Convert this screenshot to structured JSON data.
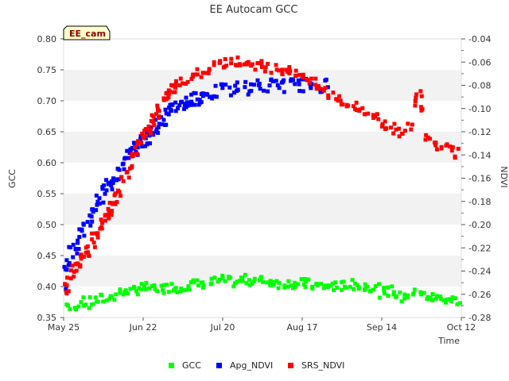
{
  "chart_data": {
    "type": "scatter",
    "title": "EE Autocam GCC",
    "badge": "EE_cam",
    "xlabel": "Time",
    "ylabel": "GCC",
    "y2label": "NDVI",
    "x_ticks": [
      "May 25",
      "Jun 22",
      "Jul 20",
      "Aug 17",
      "Sep 14",
      "Oct 12"
    ],
    "x_tick_days": [
      0,
      28,
      56,
      84,
      112,
      140
    ],
    "xlim_days": [
      0,
      140
    ],
    "ylim": [
      0.35,
      0.8
    ],
    "y_ticks": [
      "0.35",
      "0.40",
      "0.45",
      "0.50",
      "0.55",
      "0.60",
      "0.65",
      "0.70",
      "0.75",
      "0.80"
    ],
    "y2lim": [
      -0.28,
      -0.04
    ],
    "y2_ticks": [
      "-0.04",
      "-0.06",
      "-0.08",
      "-0.10",
      "-0.12",
      "-0.14",
      "-0.16",
      "-0.18",
      "-0.20",
      "-0.22",
      "-0.24",
      "-0.26",
      "-0.28"
    ],
    "grid": "alternating horizontal bands",
    "legend_position": "bottom",
    "series": [
      {
        "name": "GCC",
        "axis": "left",
        "color": "#00ff00",
        "points": [
          [
            0,
            0.37
          ],
          [
            2,
            0.365
          ],
          [
            4,
            0.37
          ],
          [
            6,
            0.375
          ],
          [
            8,
            0.37
          ],
          [
            10,
            0.375
          ],
          [
            12,
            0.378
          ],
          [
            14,
            0.38
          ],
          [
            16,
            0.382
          ],
          [
            18,
            0.385
          ],
          [
            20,
            0.39
          ],
          [
            22,
            0.395
          ],
          [
            24,
            0.392
          ],
          [
            26,
            0.395
          ],
          [
            28,
            0.397
          ],
          [
            30,
            0.398
          ],
          [
            32,
            0.396
          ],
          [
            34,
            0.398
          ],
          [
            36,
            0.397
          ],
          [
            38,
            0.399
          ],
          [
            40,
            0.398
          ],
          [
            42,
            0.4
          ],
          [
            44,
            0.402
          ],
          [
            46,
            0.403
          ],
          [
            48,
            0.404
          ],
          [
            50,
            0.405
          ],
          [
            52,
            0.406
          ],
          [
            54,
            0.408
          ],
          [
            56,
            0.41
          ],
          [
            58,
            0.408
          ],
          [
            60,
            0.407
          ],
          [
            62,
            0.41
          ],
          [
            64,
            0.411
          ],
          [
            66,
            0.41
          ],
          [
            68,
            0.41
          ],
          [
            70,
            0.409
          ],
          [
            72,
            0.408
          ],
          [
            74,
            0.407
          ],
          [
            76,
            0.405
          ],
          [
            78,
            0.406
          ],
          [
            80,
            0.405
          ],
          [
            82,
            0.404
          ],
          [
            84,
            0.405
          ],
          [
            86,
            0.404
          ],
          [
            88,
            0.402
          ],
          [
            90,
            0.401
          ],
          [
            92,
            0.4
          ],
          [
            94,
            0.401
          ],
          [
            96,
            0.4
          ],
          [
            98,
            0.401
          ],
          [
            100,
            0.402
          ],
          [
            102,
            0.403
          ],
          [
            104,
            0.402
          ],
          [
            106,
            0.401
          ],
          [
            108,
            0.4
          ],
          [
            110,
            0.398
          ],
          [
            112,
            0.39
          ],
          [
            114,
            0.392
          ],
          [
            116,
            0.393
          ],
          [
            118,
            0.387
          ],
          [
            120,
            0.38
          ],
          [
            122,
            0.388
          ],
          [
            124,
            0.39
          ],
          [
            126,
            0.387
          ],
          [
            128,
            0.384
          ],
          [
            130,
            0.382
          ],
          [
            132,
            0.381
          ],
          [
            134,
            0.381
          ],
          [
            136,
            0.379
          ],
          [
            138,
            0.378
          ],
          [
            140,
            0.375
          ]
        ]
      },
      {
        "name": "Apg_NDVI",
        "axis": "right",
        "color": "#0000ff",
        "points": [
          [
            0,
            -0.255
          ],
          [
            1,
            -0.24
          ],
          [
            2,
            -0.23
          ],
          [
            3,
            -0.225
          ],
          [
            4,
            -0.22
          ],
          [
            5,
            -0.215
          ],
          [
            6,
            -0.21
          ],
          [
            7,
            -0.205
          ],
          [
            8,
            -0.2
          ],
          [
            9,
            -0.195
          ],
          [
            10,
            -0.19
          ],
          [
            11,
            -0.185
          ],
          [
            12,
            -0.18
          ],
          [
            13,
            -0.175
          ],
          [
            14,
            -0.17
          ],
          [
            15,
            -0.168
          ],
          [
            16,
            -0.165
          ],
          [
            17,
            -0.162
          ],
          [
            18,
            -0.16
          ],
          [
            19,
            -0.157
          ],
          [
            20,
            -0.153
          ],
          [
            21,
            -0.148
          ],
          [
            22,
            -0.143
          ],
          [
            23,
            -0.14
          ],
          [
            24,
            -0.137
          ],
          [
            25,
            -0.134
          ],
          [
            26,
            -0.132
          ],
          [
            27,
            -0.13
          ],
          [
            28,
            -0.128
          ],
          [
            29,
            -0.126
          ],
          [
            30,
            -0.124
          ],
          [
            31,
            -0.121
          ],
          [
            32,
            -0.118
          ],
          [
            33,
            -0.115
          ],
          [
            34,
            -0.112
          ],
          [
            35,
            -0.109
          ],
          [
            36,
            -0.106
          ],
          [
            37,
            -0.104
          ],
          [
            38,
            -0.102
          ],
          [
            39,
            -0.1
          ],
          [
            40,
            -0.098
          ],
          [
            41,
            -0.097
          ],
          [
            42,
            -0.096
          ],
          [
            43,
            -0.095
          ],
          [
            44,
            -0.094
          ],
          [
            45,
            -0.093
          ],
          [
            46,
            -0.092
          ],
          [
            47,
            -0.091
          ],
          [
            48,
            -0.09
          ],
          [
            49,
            -0.089
          ],
          [
            50,
            -0.088
          ],
          [
            52,
            -0.087
          ],
          [
            54,
            -0.086
          ],
          [
            56,
            -0.085
          ],
          [
            58,
            -0.084
          ],
          [
            60,
            -0.083
          ],
          [
            62,
            -0.082
          ],
          [
            64,
            -0.082
          ],
          [
            66,
            -0.081
          ],
          [
            68,
            -0.081
          ],
          [
            70,
            -0.08
          ],
          [
            72,
            -0.08
          ],
          [
            74,
            -0.08
          ],
          [
            76,
            -0.079
          ],
          [
            78,
            -0.08
          ],
          [
            80,
            -0.08
          ],
          [
            82,
            -0.079
          ],
          [
            84,
            -0.08
          ],
          [
            86,
            -0.08
          ],
          [
            88,
            -0.079
          ],
          [
            90,
            -0.08
          ],
          [
            92,
            -0.08
          ]
        ]
      },
      {
        "name": "SRS_NDVI",
        "axis": "left",
        "color": "#ff0000",
        "points": [
          [
            0,
            0.39
          ],
          [
            1,
            0.4
          ],
          [
            2,
            0.41
          ],
          [
            3,
            0.42
          ],
          [
            4,
            0.43
          ],
          [
            5,
            0.435
          ],
          [
            6,
            0.44
          ],
          [
            7,
            0.45
          ],
          [
            8,
            0.455
          ],
          [
            9,
            0.46
          ],
          [
            10,
            0.47
          ],
          [
            11,
            0.48
          ],
          [
            12,
            0.49
          ],
          [
            13,
            0.5
          ],
          [
            14,
            0.51
          ],
          [
            15,
            0.515
          ],
          [
            16,
            0.52
          ],
          [
            17,
            0.53
          ],
          [
            18,
            0.54
          ],
          [
            19,
            0.55
          ],
          [
            20,
            0.56
          ],
          [
            21,
            0.57
          ],
          [
            22,
            0.58
          ],
          [
            23,
            0.595
          ],
          [
            24,
            0.61
          ],
          [
            25,
            0.62
          ],
          [
            26,
            0.63
          ],
          [
            27,
            0.64
          ],
          [
            28,
            0.645
          ],
          [
            29,
            0.65
          ],
          [
            30,
            0.655
          ],
          [
            31,
            0.665
          ],
          [
            32,
            0.672
          ],
          [
            33,
            0.68
          ],
          [
            34,
            0.69
          ],
          [
            35,
            0.7
          ],
          [
            36,
            0.705
          ],
          [
            37,
            0.71
          ],
          [
            38,
            0.715
          ],
          [
            39,
            0.72
          ],
          [
            40,
            0.725
          ],
          [
            42,
            0.73
          ],
          [
            44,
            0.735
          ],
          [
            46,
            0.74
          ],
          [
            48,
            0.745
          ],
          [
            50,
            0.75
          ],
          [
            52,
            0.755
          ],
          [
            54,
            0.758
          ],
          [
            56,
            0.76
          ],
          [
            58,
            0.762
          ],
          [
            60,
            0.765
          ],
          [
            62,
            0.763
          ],
          [
            64,
            0.762
          ],
          [
            66,
            0.76
          ],
          [
            68,
            0.758
          ],
          [
            70,
            0.757
          ],
          [
            72,
            0.755
          ],
          [
            74,
            0.753
          ],
          [
            76,
            0.752
          ],
          [
            78,
            0.75
          ],
          [
            80,
            0.748
          ],
          [
            82,
            0.745
          ],
          [
            84,
            0.742
          ],
          [
            86,
            0.735
          ],
          [
            88,
            0.728
          ],
          [
            90,
            0.722
          ],
          [
            92,
            0.716
          ],
          [
            94,
            0.71
          ],
          [
            96,
            0.705
          ],
          [
            98,
            0.7
          ],
          [
            100,
            0.695
          ],
          [
            102,
            0.69
          ],
          [
            104,
            0.686
          ],
          [
            106,
            0.682
          ],
          [
            108,
            0.678
          ],
          [
            110,
            0.674
          ],
          [
            112,
            0.665
          ],
          [
            114,
            0.66
          ],
          [
            116,
            0.655
          ],
          [
            118,
            0.65
          ],
          [
            120,
            0.645
          ],
          [
            122,
            0.66
          ],
          [
            124,
            0.7
          ],
          [
            125,
            0.715
          ],
          [
            126,
            0.69
          ],
          [
            128,
            0.645
          ],
          [
            130,
            0.635
          ],
          [
            132,
            0.628
          ],
          [
            134,
            0.63
          ],
          [
            136,
            0.625
          ],
          [
            138,
            0.615
          ],
          [
            140,
            0.59
          ]
        ]
      }
    ]
  }
}
